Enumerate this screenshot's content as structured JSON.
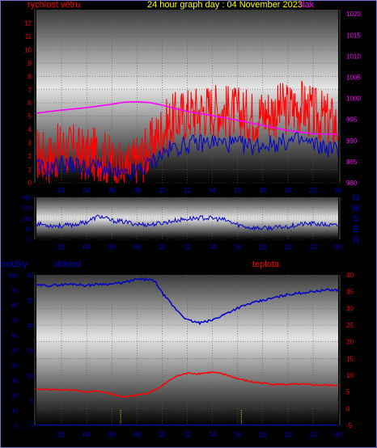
{
  "header": {
    "title": "24 hour graph day : 04 November 2023",
    "label_wind": "rychlost větru",
    "label_pressure": "tlak",
    "label_rain": "srážky",
    "label_humidity": "vlhkost",
    "label_temp": "teplota"
  },
  "colors": {
    "frame": "#7878d0",
    "wind": "#ff0000",
    "gust": "#ff0000",
    "pressure": "#ff00ff",
    "direction": "#0000cc",
    "humidity": "#0000cc",
    "temperature": "#ff0000",
    "rain": "#ffff00",
    "axis_wind": "#ff0000",
    "axis_pressure": "#ff00ff",
    "axis_dir": "#0000cc",
    "axis_rain": "#0000cc",
    "axis_hum": "#0000cc",
    "axis_temp": "#ff0000",
    "title": "#ffff00"
  },
  "x_ticks": [
    "02",
    "04",
    "06",
    "08",
    "10",
    "12",
    "14",
    "16",
    "18",
    "20",
    "22",
    "00"
  ],
  "compass": [
    "N",
    "W",
    "S",
    "E",
    "N"
  ],
  "chart_data": [
    {
      "type": "line",
      "name": "wind-pressure",
      "x": "hours 00-24",
      "ylim_left": [
        0,
        13
      ],
      "left_ticks": [
        0,
        1,
        2,
        3,
        4,
        5,
        6,
        7,
        8,
        9,
        10,
        11,
        12
      ],
      "ylim_right": [
        980,
        1021
      ],
      "right_ticks": [
        980,
        985,
        990,
        995,
        1000,
        1005,
        1010,
        1015,
        1020
      ],
      "series": [
        {
          "name": "rychlost větru",
          "hours": [
            0,
            1,
            2,
            3,
            4,
            5,
            6,
            7,
            8,
            9,
            10,
            11,
            12,
            13,
            14,
            15,
            16,
            17,
            18,
            19,
            20,
            21,
            22,
            23,
            24
          ],
          "values": [
            2.2,
            1.8,
            2.6,
            2.4,
            2.0,
            2.2,
            1.5,
            0.8,
            1.6,
            2.6,
            4.0,
            4.8,
            5.2,
            5.4,
            5.6,
            5.4,
            5.2,
            5.0,
            5.2,
            5.4,
            5.6,
            5.8,
            5.2,
            4.8,
            4.4
          ]
        },
        {
          "name": "tlak",
          "hours": [
            0,
            2,
            4,
            6,
            7,
            8,
            9,
            10,
            11,
            12,
            14,
            16,
            18,
            20,
            22,
            24
          ],
          "values": [
            996.5,
            997.2,
            997.8,
            998.6,
            999.1,
            999.2,
            999.0,
            998.4,
            997.6,
            996.9,
            995.9,
            994.8,
            993.6,
            992.4,
            991.6,
            991.5
          ]
        }
      ]
    },
    {
      "type": "line",
      "name": "wind-direction",
      "ylim": [
        0,
        360
      ],
      "ticks": [
        0,
        90,
        180,
        270,
        360
      ],
      "hours": [
        0,
        1,
        2,
        3,
        4,
        5,
        6,
        7,
        8,
        9,
        10,
        11,
        12,
        13,
        14,
        15,
        16,
        17,
        18,
        19,
        20,
        21,
        22,
        23,
        24
      ],
      "values": [
        135,
        120,
        115,
        125,
        150,
        200,
        160,
        150,
        130,
        125,
        140,
        160,
        175,
        185,
        180,
        165,
        125,
        100,
        95,
        100,
        110,
        130,
        135,
        125,
        115
      ]
    },
    {
      "type": "line",
      "name": "humidity-temperature-rain",
      "ylim_rain": [
        0,
        30
      ],
      "rain_ticks": [
        0,
        5,
        10,
        15,
        20,
        25,
        30
      ],
      "ylim_hum": [
        0,
        100
      ],
      "hum_ticks": [
        0,
        10,
        20,
        30,
        40,
        50,
        60,
        70,
        80,
        90,
        100
      ],
      "ylim_temp": [
        -5,
        40
      ],
      "temp_ticks": [
        -5,
        0,
        5,
        10,
        15,
        20,
        25,
        30,
        35,
        40
      ],
      "series": [
        {
          "name": "vlhkost",
          "hours": [
            0,
            1,
            2,
            3,
            4,
            5,
            6,
            7,
            8,
            9,
            9.5,
            10,
            11,
            12,
            13,
            14,
            15,
            16,
            17,
            18,
            19,
            20,
            21,
            22,
            23,
            24
          ],
          "values": [
            93,
            93,
            93.5,
            94,
            93,
            94,
            94,
            95,
            97,
            97,
            95,
            88,
            78,
            70,
            68,
            70,
            74,
            78,
            81,
            83,
            85,
            87,
            88,
            89,
            90,
            90
          ]
        },
        {
          "name": "teplota",
          "hours": [
            0,
            1,
            2,
            3,
            4,
            5,
            6,
            7,
            8,
            9,
            10,
            11,
            12,
            13,
            14,
            15,
            16,
            17,
            18,
            19,
            20,
            21,
            22,
            23,
            24
          ],
          "values": [
            5.8,
            5.8,
            5.6,
            5.6,
            5.0,
            5.2,
            4.4,
            3.4,
            4.0,
            4.8,
            6.8,
            9.5,
            10.6,
            10.5,
            10.9,
            10.2,
            9.0,
            8.1,
            7.6,
            7.3,
            7.2,
            7.3,
            7.1,
            7.0,
            7.0
          ]
        },
        {
          "name": "srážky",
          "bars": [
            {
              "hour": 6.7,
              "value": 3
            },
            {
              "hour": 16.3,
              "value": 3
            }
          ]
        }
      ]
    }
  ]
}
